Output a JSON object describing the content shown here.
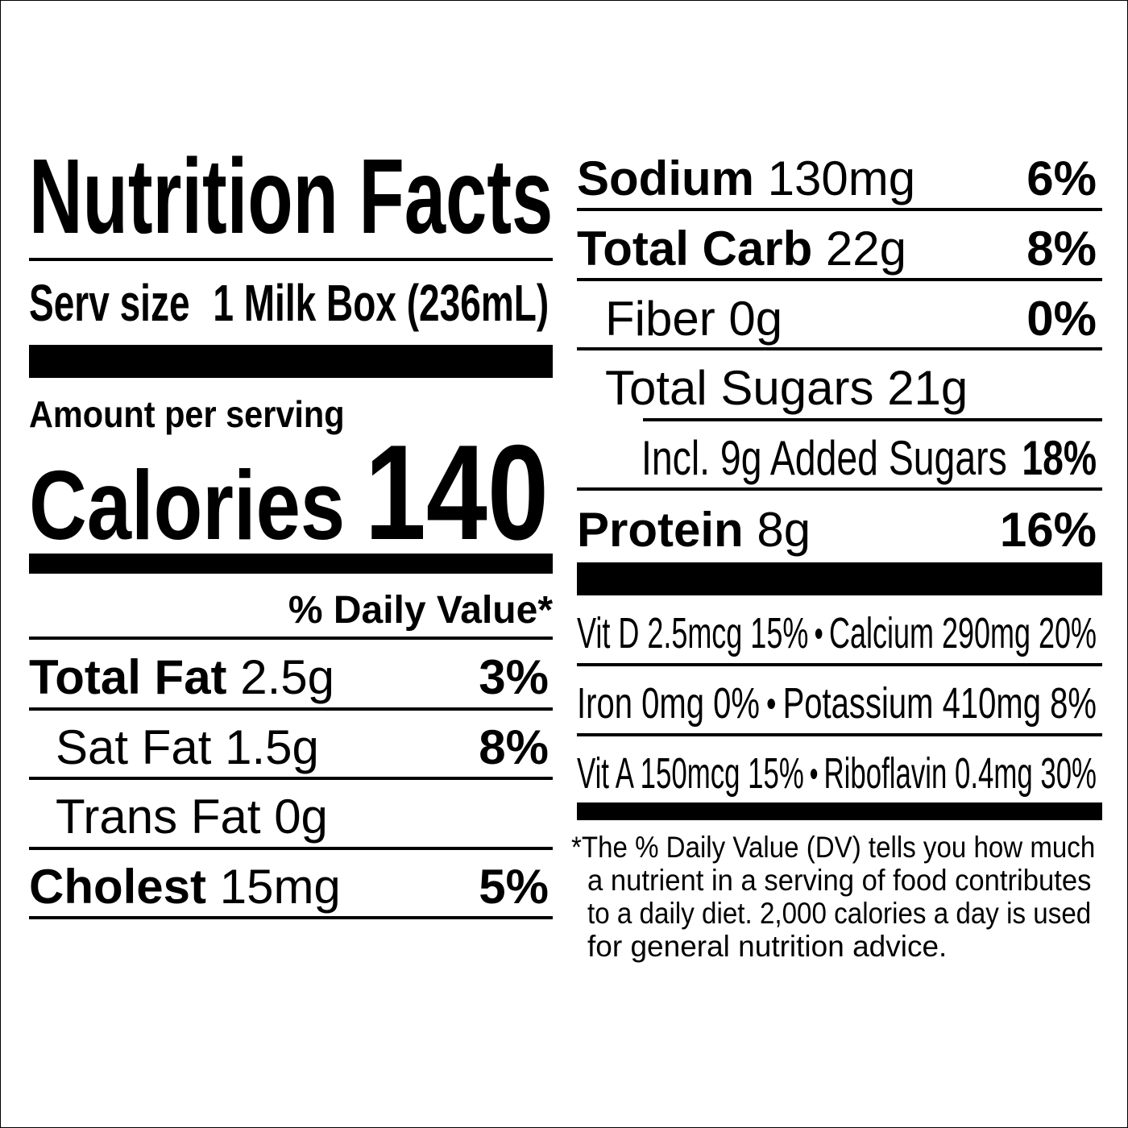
{
  "title": "Nutrition Facts",
  "serving": {
    "label": "Serv size",
    "value": "1 Milk Box (236mL)"
  },
  "amount_per_serving": "Amount per serving",
  "calories": {
    "label": "Calories",
    "value": "140"
  },
  "daily_value_header": "% Daily Value*",
  "left_rows": [
    {
      "label": "Total Fat",
      "amount": "2.5g",
      "dv": "3%"
    },
    {
      "label": "Sat Fat",
      "amount": "1.5g",
      "dv": "8%"
    },
    {
      "label": "Trans Fat",
      "amount": "0g",
      "dv": ""
    },
    {
      "label": "Cholest",
      "amount": "15mg",
      "dv": "5%"
    }
  ],
  "right_rows": [
    {
      "label": "Sodium",
      "amount": "130mg",
      "dv": "6%"
    },
    {
      "label": "Total Carb",
      "amount": "22g",
      "dv": "8%"
    },
    {
      "label": "Fiber",
      "amount": "0g",
      "dv": "0%"
    },
    {
      "label": "Total Sugars",
      "amount": "21g",
      "dv": ""
    },
    {
      "label": "Incl. 9g Added Sugars",
      "amount": "",
      "dv": "18%"
    },
    {
      "label": "Protein",
      "amount": "8g",
      "dv": "16%"
    }
  ],
  "vitamins": [
    {
      "left": "Vit D 2.5mcg 15%",
      "right": "Calcium 290mg 20%"
    },
    {
      "left": "Iron 0mg 0%",
      "right": "Potassium 410mg 8%"
    },
    {
      "left": "Vit A 150mcg 15%",
      "right": "Riboflavin 0.4mg 30%"
    }
  ],
  "bullet": "●",
  "footnote": [
    "*The % Daily Value (DV) tells you how much",
    "a nutrient in a serving of food contributes",
    "to a daily diet. 2,000 calories a day is used",
    "for general nutrition advice."
  ]
}
